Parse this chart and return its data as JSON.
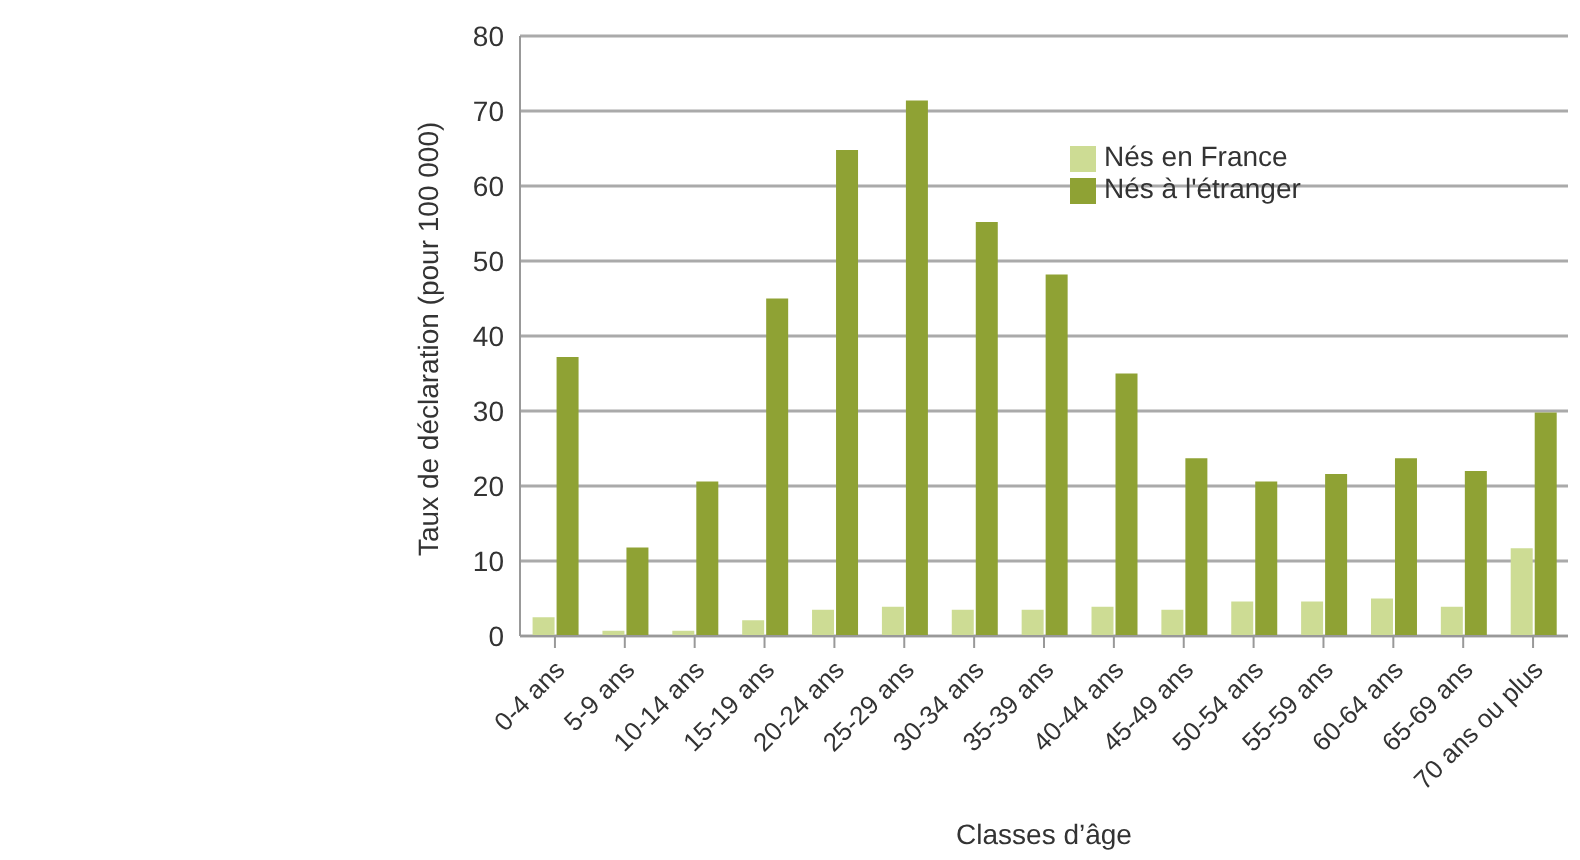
{
  "chart_data": {
    "type": "bar",
    "xlabel": "Classes d’âge",
    "ylabel": "Taux de déclaration (pour 100 000)",
    "categories": [
      "0-4 ans",
      "5-9 ans",
      "10-14 ans",
      "15-19 ans",
      "20-24 ans",
      "25-29 ans",
      "30-34 ans",
      "35-39 ans",
      "40-44 ans",
      "45-49 ans",
      "50-54 ans",
      "55-59 ans",
      "60-64 ans",
      "65-69 ans",
      "70 ans ou plus"
    ],
    "series": [
      {
        "name": "Nés en France",
        "color": "#cddc94",
        "values": [
          2.5,
          0.7,
          0.7,
          2.1,
          3.5,
          3.9,
          3.5,
          3.5,
          3.9,
          3.5,
          4.6,
          4.6,
          5.0,
          3.9,
          11.7
        ]
      },
      {
        "name": "Nés à l'étranger",
        "color": "#8fa234",
        "values": [
          37.2,
          11.8,
          20.6,
          45.0,
          64.8,
          71.4,
          55.2,
          48.2,
          35.0,
          23.7,
          20.6,
          21.6,
          23.7,
          22.0,
          29.8
        ]
      }
    ],
    "ylim": [
      0,
      80
    ],
    "yticks": [
      0,
      10,
      20,
      30,
      40,
      50,
      60,
      70,
      80
    ],
    "grid": "y",
    "legend": "top right"
  }
}
